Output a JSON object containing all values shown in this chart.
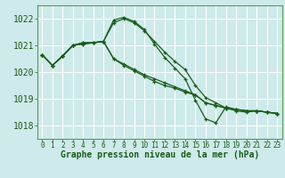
{
  "title": "Graphe pression niveau de la mer (hPa)",
  "bg_color": "#ceeaea",
  "grid_color": "#ffffff",
  "line_color": "#1a5c1a",
  "spine_color": "#5a9a5a",
  "xlim": [
    -0.5,
    23.5
  ],
  "ylim": [
    1017.5,
    1022.5
  ],
  "yticks": [
    1018,
    1019,
    1020,
    1021,
    1022
  ],
  "xticks": [
    0,
    1,
    2,
    3,
    4,
    5,
    6,
    7,
    8,
    9,
    10,
    11,
    12,
    13,
    14,
    15,
    16,
    17,
    18,
    19,
    20,
    21,
    22,
    23
  ],
  "series": [
    [
      1020.65,
      1020.25,
      1020.6,
      1021.0,
      1021.1,
      1021.1,
      1021.15,
      1021.85,
      1022.0,
      1021.85,
      1021.55,
      1021.15,
      1020.75,
      1020.4,
      1020.1,
      1019.5,
      1019.05,
      1018.85,
      1018.65,
      1018.55,
      1018.5,
      1018.55,
      1018.5,
      1018.45
    ],
    [
      1020.65,
      1020.25,
      1020.6,
      1021.0,
      1021.1,
      1021.1,
      1021.15,
      1021.95,
      1022.05,
      1021.9,
      1021.6,
      1021.05,
      1020.55,
      1020.15,
      1019.75,
      1018.95,
      1018.25,
      1018.1,
      1018.7,
      1018.6,
      1018.55,
      1018.55,
      1018.5,
      1018.45
    ],
    [
      1020.65,
      1020.25,
      1020.6,
      1021.0,
      1021.05,
      1021.1,
      1021.15,
      1020.5,
      1020.3,
      1020.1,
      1019.9,
      1019.75,
      1019.6,
      1019.45,
      1019.3,
      1019.15,
      1018.85,
      1018.75,
      1018.65,
      1018.6,
      1018.55,
      1018.55,
      1018.5,
      1018.45
    ],
    [
      1020.65,
      1020.25,
      1020.6,
      1021.0,
      1021.05,
      1021.1,
      1021.15,
      1020.5,
      1020.25,
      1020.05,
      1019.85,
      1019.65,
      1019.5,
      1019.4,
      1019.25,
      1019.15,
      1018.85,
      1018.75,
      1018.65,
      1018.6,
      1018.55,
      1018.55,
      1018.5,
      1018.45
    ]
  ]
}
